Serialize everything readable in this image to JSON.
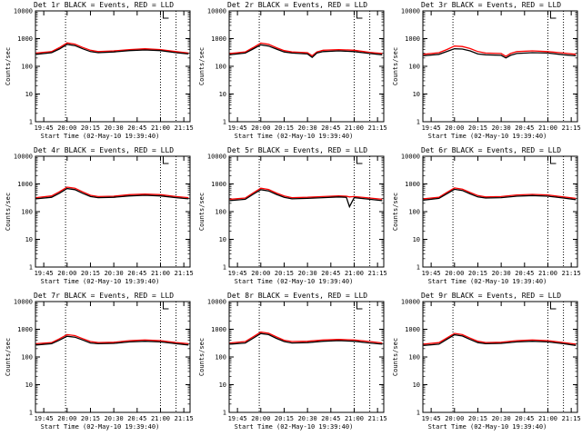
{
  "colors": {
    "events": "#000000",
    "lld": "#ff0000",
    "frame": "#000000",
    "background": "#ffffff"
  },
  "chart_data": [
    {
      "type": "line",
      "title": "Det 1r BLACK = Events, RED = LLD",
      "xlabel": "Start Time (02-May-10 19:39:40)",
      "ylabel": "Counts/sec",
      "yscale": "log",
      "ylim": [
        1,
        10000
      ],
      "xlim": [
        "19:39:40",
        "21:19:00"
      ],
      "xticks": [
        "19:45",
        "20:00",
        "20:15",
        "20:30",
        "20:45",
        "21:00",
        "21:15"
      ],
      "yticks": [
        "1",
        "10",
        "100",
        "1000",
        "10000"
      ],
      "vlines": [
        "19:59",
        "21:00",
        "21:10"
      ],
      "x": [
        "19:40",
        "19:50",
        "19:55",
        "20:00",
        "20:05",
        "20:10",
        "20:15",
        "20:20",
        "20:30",
        "20:40",
        "20:50",
        "21:00",
        "21:10",
        "21:18"
      ],
      "series": [
        {
          "name": "Events",
          "color": "#000000",
          "values": [
            270,
            310,
            420,
            620,
            560,
            430,
            340,
            310,
            330,
            370,
            390,
            370,
            310,
            280
          ]
        },
        {
          "name": "LLD",
          "color": "#ff0000",
          "values": [
            300,
            340,
            470,
            700,
            630,
            480,
            380,
            340,
            360,
            400,
            430,
            400,
            340,
            300
          ]
        }
      ]
    },
    {
      "type": "line",
      "title": "Det 2r BLACK = Events, RED = LLD",
      "xlabel": "Start Time (02-May-10 19:39:40)",
      "ylabel": "Counts/sec",
      "yscale": "log",
      "ylim": [
        1,
        10000
      ],
      "xlim": [
        "19:39:40",
        "21:19:00"
      ],
      "xticks": [
        "19:45",
        "20:00",
        "20:15",
        "20:30",
        "20:45",
        "21:00",
        "21:15"
      ],
      "yticks": [
        "1",
        "10",
        "100",
        "1000",
        "10000"
      ],
      "vlines": [
        "19:59",
        "21:00",
        "21:10"
      ],
      "x": [
        "19:40",
        "19:50",
        "19:55",
        "20:00",
        "20:05",
        "20:10",
        "20:15",
        "20:20",
        "20:30",
        "20:33",
        "20:36",
        "20:40",
        "20:50",
        "21:00",
        "21:10",
        "21:18"
      ],
      "series": [
        {
          "name": "Events",
          "color": "#000000",
          "values": [
            260,
            300,
            420,
            600,
            540,
            420,
            330,
            300,
            280,
            210,
            300,
            340,
            360,
            340,
            290,
            260
          ]
        },
        {
          "name": "LLD",
          "color": "#ff0000",
          "values": [
            290,
            330,
            470,
            690,
            620,
            470,
            370,
            330,
            310,
            240,
            330,
            380,
            400,
            380,
            320,
            290
          ]
        }
      ]
    },
    {
      "type": "line",
      "title": "Det 3r BLACK = Events, RED = LLD",
      "xlabel": "Start Time (02-May-10 19:39:40)",
      "ylabel": "Counts/sec",
      "yscale": "log",
      "ylim": [
        1,
        10000
      ],
      "xlim": [
        "19:39:40",
        "21:19:00"
      ],
      "xticks": [
        "19:45",
        "20:00",
        "20:15",
        "20:30",
        "20:45",
        "21:00",
        "21:15"
      ],
      "yticks": [
        "1",
        "10",
        "100",
        "1000",
        "10000"
      ],
      "vlines": [
        "19:59",
        "21:00",
        "21:10"
      ],
      "x": [
        "19:40",
        "19:50",
        "19:55",
        "20:00",
        "20:05",
        "20:10",
        "20:15",
        "20:20",
        "20:30",
        "20:33",
        "20:36",
        "20:40",
        "20:50",
        "21:00",
        "21:10",
        "21:18"
      ],
      "series": [
        {
          "name": "Events",
          "color": "#000000",
          "values": [
            240,
            270,
            340,
            430,
            420,
            360,
            280,
            260,
            250,
            200,
            250,
            290,
            310,
            300,
            260,
            240
          ]
        },
        {
          "name": "LLD",
          "color": "#ff0000",
          "values": [
            270,
            310,
            400,
            540,
            520,
            440,
            340,
            300,
            290,
            230,
            290,
            340,
            360,
            340,
            300,
            270
          ]
        }
      ]
    },
    {
      "type": "line",
      "title": "Det 4r BLACK = Events, RED = LLD",
      "xlabel": "Start Time (02-May-10 19:39:40)",
      "ylabel": "Counts/sec",
      "yscale": "log",
      "ylim": [
        1,
        10000
      ],
      "xlim": [
        "19:39:40",
        "21:19:00"
      ],
      "xticks": [
        "19:45",
        "20:00",
        "20:15",
        "20:30",
        "20:45",
        "21:00",
        "21:15"
      ],
      "yticks": [
        "1",
        "10",
        "100",
        "1000",
        "10000"
      ],
      "vlines": [
        "19:59",
        "21:00",
        "21:10"
      ],
      "x": [
        "19:40",
        "19:50",
        "19:55",
        "20:00",
        "20:05",
        "20:10",
        "20:15",
        "20:20",
        "20:30",
        "20:40",
        "20:50",
        "21:00",
        "21:10",
        "21:18"
      ],
      "series": [
        {
          "name": "Events",
          "color": "#000000",
          "values": [
            290,
            330,
            460,
            680,
            620,
            460,
            350,
            320,
            330,
            370,
            390,
            370,
            320,
            290
          ]
        },
        {
          "name": "LLD",
          "color": "#ff0000",
          "values": [
            320,
            370,
            520,
            770,
            700,
            520,
            390,
            350,
            360,
            410,
            430,
            410,
            350,
            320
          ]
        }
      ]
    },
    {
      "type": "line",
      "title": "Det 5r BLACK = Events, RED = LLD",
      "xlabel": "Start Time (02-May-10 19:39:40)",
      "ylabel": "Counts/sec",
      "yscale": "log",
      "ylim": [
        1,
        10000
      ],
      "xlim": [
        "19:39:40",
        "21:19:00"
      ],
      "xticks": [
        "19:45",
        "20:00",
        "20:15",
        "20:30",
        "20:45",
        "21:00",
        "21:15"
      ],
      "yticks": [
        "1",
        "10",
        "100",
        "1000",
        "10000"
      ],
      "vlines": [
        "19:59",
        "21:00",
        "21:10"
      ],
      "x": [
        "19:40",
        "19:50",
        "19:55",
        "20:00",
        "20:05",
        "20:10",
        "20:15",
        "20:20",
        "20:30",
        "20:40",
        "20:50",
        "20:55",
        "20:57",
        "21:00",
        "21:10",
        "21:18"
      ],
      "series": [
        {
          "name": "Events",
          "color": "#000000",
          "values": [
            250,
            280,
            420,
            620,
            560,
            420,
            330,
            290,
            300,
            320,
            340,
            330,
            150,
            320,
            280,
            250
          ]
        },
        {
          "name": "LLD",
          "color": "#ff0000",
          "values": [
            280,
            310,
            470,
            700,
            630,
            470,
            370,
            320,
            330,
            350,
            370,
            360,
            340,
            350,
            310,
            280
          ]
        }
      ]
    },
    {
      "type": "line",
      "title": "Det 6r BLACK = Events, RED = LLD",
      "xlabel": "Start Time (02-May-10 19:39:40)",
      "ylabel": "Counts/sec",
      "yscale": "log",
      "ylim": [
        1,
        10000
      ],
      "xlim": [
        "19:39:40",
        "21:19:00"
      ],
      "xticks": [
        "19:45",
        "20:00",
        "20:15",
        "20:30",
        "20:45",
        "21:00",
        "21:15"
      ],
      "yticks": [
        "1",
        "10",
        "100",
        "1000",
        "10000"
      ],
      "vlines": [
        "19:59",
        "21:00",
        "21:10"
      ],
      "x": [
        "19:40",
        "19:50",
        "19:55",
        "20:00",
        "20:05",
        "20:10",
        "20:15",
        "20:20",
        "20:30",
        "20:40",
        "20:50",
        "21:00",
        "21:10",
        "21:18"
      ],
      "series": [
        {
          "name": "Events",
          "color": "#000000",
          "values": [
            260,
            300,
            440,
            640,
            580,
            440,
            340,
            310,
            320,
            360,
            380,
            360,
            310,
            270
          ]
        },
        {
          "name": "LLD",
          "color": "#ff0000",
          "values": [
            290,
            330,
            490,
            720,
            650,
            490,
            380,
            340,
            350,
            400,
            420,
            400,
            340,
            300
          ]
        }
      ]
    },
    {
      "type": "line",
      "title": "Det 7r BLACK = Events, RED = LLD",
      "xlabel": "Start Time (02-May-10 19:39:40)",
      "ylabel": "Counts/sec",
      "yscale": "log",
      "ylim": [
        1,
        10000
      ],
      "xlim": [
        "19:39:40",
        "21:19:00"
      ],
      "xticks": [
        "19:45",
        "20:00",
        "20:15",
        "20:30",
        "20:45",
        "21:00",
        "21:15"
      ],
      "yticks": [
        "1",
        "10",
        "100",
        "1000",
        "10000"
      ],
      "vlines": [
        "19:59",
        "21:00",
        "21:10"
      ],
      "x": [
        "19:40",
        "19:50",
        "19:55",
        "20:00",
        "20:05",
        "20:10",
        "20:15",
        "20:20",
        "20:30",
        "20:40",
        "20:50",
        "21:00",
        "21:10",
        "21:18"
      ],
      "series": [
        {
          "name": "Events",
          "color": "#000000",
          "values": [
            270,
            300,
            400,
            560,
            520,
            410,
            320,
            300,
            310,
            350,
            370,
            350,
            300,
            270
          ]
        },
        {
          "name": "LLD",
          "color": "#ff0000",
          "values": [
            300,
            330,
            450,
            640,
            590,
            460,
            360,
            330,
            340,
            390,
            410,
            390,
            330,
            300
          ]
        }
      ]
    },
    {
      "type": "line",
      "title": "Det 8r BLACK = Events, RED = LLD",
      "xlabel": "Start Time (02-May-10 19:39:40)",
      "ylabel": "Counts/sec",
      "yscale": "log",
      "ylim": [
        1,
        10000
      ],
      "xlim": [
        "19:39:40",
        "21:19:00"
      ],
      "xticks": [
        "19:45",
        "20:00",
        "20:15",
        "20:30",
        "20:45",
        "21:00",
        "21:15"
      ],
      "yticks": [
        "1",
        "10",
        "100",
        "1000",
        "10000"
      ],
      "vlines": [
        "19:59",
        "21:00",
        "21:10"
      ],
      "x": [
        "19:40",
        "19:50",
        "19:55",
        "20:00",
        "20:05",
        "20:10",
        "20:15",
        "20:20",
        "20:30",
        "20:40",
        "20:50",
        "21:00",
        "21:10",
        "21:18"
      ],
      "series": [
        {
          "name": "Events",
          "color": "#000000",
          "values": [
            290,
            320,
            470,
            700,
            640,
            470,
            360,
            320,
            330,
            370,
            390,
            370,
            320,
            290
          ]
        },
        {
          "name": "LLD",
          "color": "#ff0000",
          "values": [
            320,
            360,
            530,
            790,
            720,
            530,
            400,
            360,
            370,
            410,
            430,
            410,
            360,
            320
          ]
        }
      ]
    },
    {
      "type": "line",
      "title": "Det 9r BLACK = Events, RED = LLD",
      "xlabel": "Start Time (02-May-10 19:39:40)",
      "ylabel": "Counts/sec",
      "yscale": "log",
      "ylim": [
        1,
        10000
      ],
      "xlim": [
        "19:39:40",
        "21:19:00"
      ],
      "xticks": [
        "19:45",
        "20:00",
        "20:15",
        "20:30",
        "20:45",
        "21:00",
        "21:15"
      ],
      "yticks": [
        "1",
        "10",
        "100",
        "1000",
        "10000"
      ],
      "vlines": [
        "19:59",
        "21:00",
        "21:10"
      ],
      "x": [
        "19:40",
        "19:50",
        "19:55",
        "20:00",
        "20:05",
        "20:10",
        "20:15",
        "20:20",
        "20:30",
        "20:40",
        "20:50",
        "21:00",
        "21:10",
        "21:18"
      ],
      "series": [
        {
          "name": "Events",
          "color": "#000000",
          "values": [
            260,
            290,
            430,
            630,
            570,
            430,
            330,
            300,
            310,
            350,
            370,
            350,
            300,
            260
          ]
        },
        {
          "name": "LLD",
          "color": "#ff0000",
          "values": [
            290,
            330,
            480,
            710,
            640,
            480,
            370,
            330,
            340,
            390,
            410,
            390,
            330,
            290
          ]
        }
      ]
    }
  ]
}
